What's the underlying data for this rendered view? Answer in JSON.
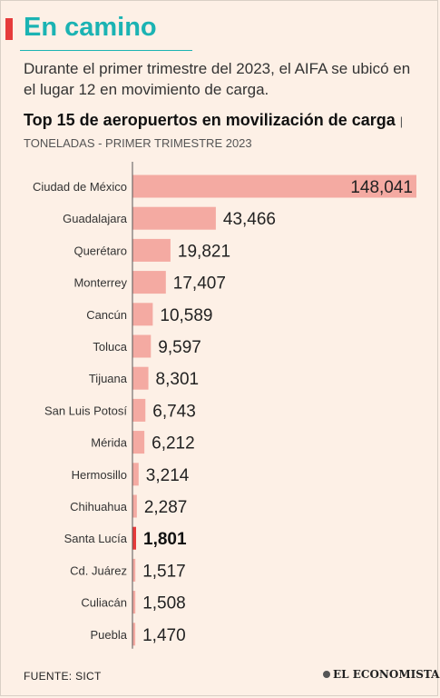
{
  "header": {
    "headline": "En camino",
    "subtitle": "Durante el primer trimestre del 2023, el AIFA se ubicó en el lugar 12 en movimiento de carga."
  },
  "chart_data": {
    "type": "bar",
    "orientation": "horizontal",
    "title": "Top 15 de aeropuertos en movilización de carga",
    "unit_label": "TONELADAS - PRIMER TRIMESTRE 2023",
    "categories": [
      "Ciudad de México",
      "Guadalajara",
      "Querétaro",
      "Monterrey",
      "Cancún",
      "Toluca",
      "Tijuana",
      "San Luis Potosí",
      "Mérida",
      "Hermosillo",
      "Chihuahua",
      "Santa Lucía",
      "Cd. Juárez",
      "Culiacán",
      "Puebla"
    ],
    "values": [
      148041,
      43466,
      19821,
      17407,
      10589,
      9597,
      8301,
      6743,
      6212,
      3214,
      2287,
      1801,
      1517,
      1508,
      1470
    ],
    "value_labels": [
      "148,041",
      "43,466",
      "19,821",
      "17,407",
      "10,589",
      "9,597",
      "8,301",
      "6,743",
      "6,212",
      "3,214",
      "2,287",
      "1,801",
      "1,517",
      "1,508",
      "1,470"
    ],
    "highlight": "Santa Lucía",
    "xlim": [
      0,
      148041
    ],
    "colors": {
      "bar": "#f4aaa2",
      "highlight": "#e63b3b",
      "axis": "#555555"
    }
  },
  "footer": {
    "source": "FUENTE: SICT",
    "logo_text": "EL ECONOMISTA"
  }
}
